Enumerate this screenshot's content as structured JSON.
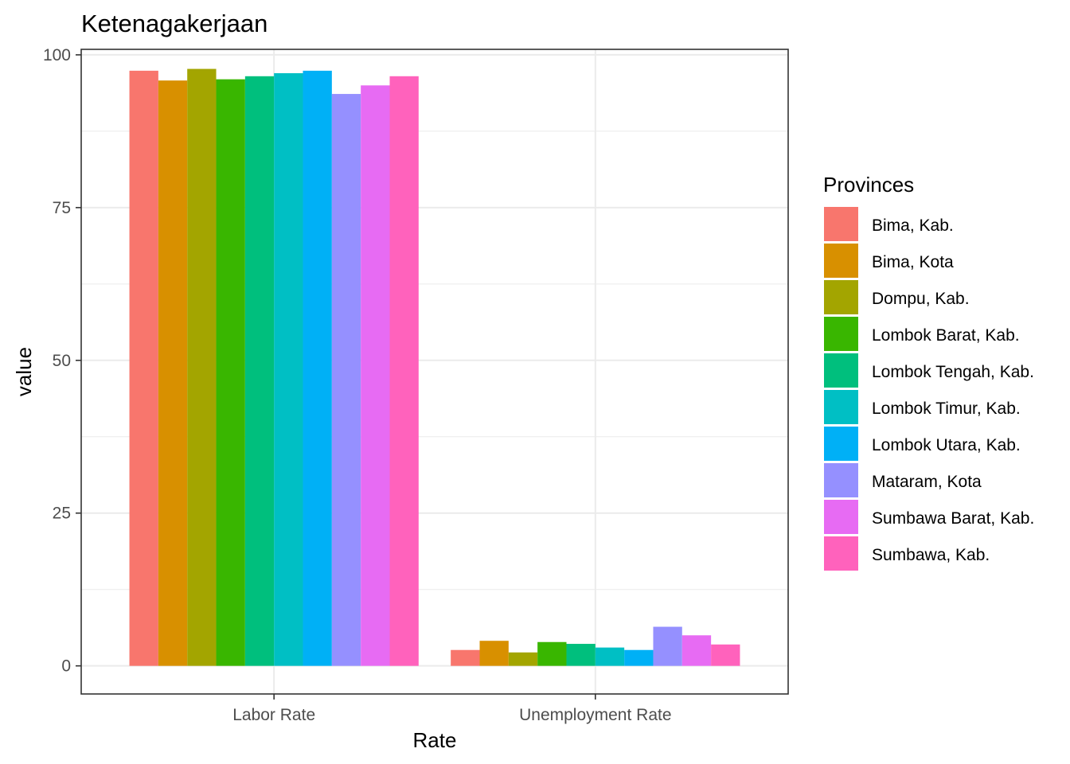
{
  "chart_data": {
    "type": "bar",
    "title": "Ketenagakerjaan",
    "xlabel": "Rate",
    "ylabel": "value",
    "categories": [
      "Labor Rate",
      "Unemployment Rate"
    ],
    "ylim": [
      -4.6,
      100.9
    ],
    "yticks": [
      0,
      25,
      50,
      75,
      100
    ],
    "ytick_labels": [
      "0",
      "25",
      "50",
      "75",
      "100"
    ],
    "grid": true,
    "legend": {
      "title": "Provinces",
      "position": "right"
    },
    "series": [
      {
        "name": "Bima, Kab.",
        "color": "#F8766D",
        "values": [
          97.4,
          2.6
        ]
      },
      {
        "name": "Bima, Kota",
        "color": "#D89000",
        "values": [
          95.8,
          4.1
        ]
      },
      {
        "name": "Dompu, Kab.",
        "color": "#A3A500",
        "values": [
          97.7,
          2.2
        ]
      },
      {
        "name": "Lombok Barat, Kab.",
        "color": "#39B600",
        "values": [
          96.0,
          3.9
        ]
      },
      {
        "name": "Lombok Tengah, Kab.",
        "color": "#00BF7D",
        "values": [
          96.5,
          3.6
        ]
      },
      {
        "name": "Lombok Timur, Kab.",
        "color": "#00BFC4",
        "values": [
          97.0,
          3.0
        ]
      },
      {
        "name": "Lombok Utara, Kab.",
        "color": "#00B0F6",
        "values": [
          97.4,
          2.6
        ]
      },
      {
        "name": "Mataram, Kota",
        "color": "#9590FF",
        "values": [
          93.6,
          6.4
        ]
      },
      {
        "name": "Sumbawa Barat, Kab.",
        "color": "#E76BF3",
        "values": [
          95.0,
          5.0
        ]
      },
      {
        "name": "Sumbawa, Kab.",
        "color": "#FF62BC",
        "values": [
          96.5,
          3.5
        ]
      }
    ]
  }
}
